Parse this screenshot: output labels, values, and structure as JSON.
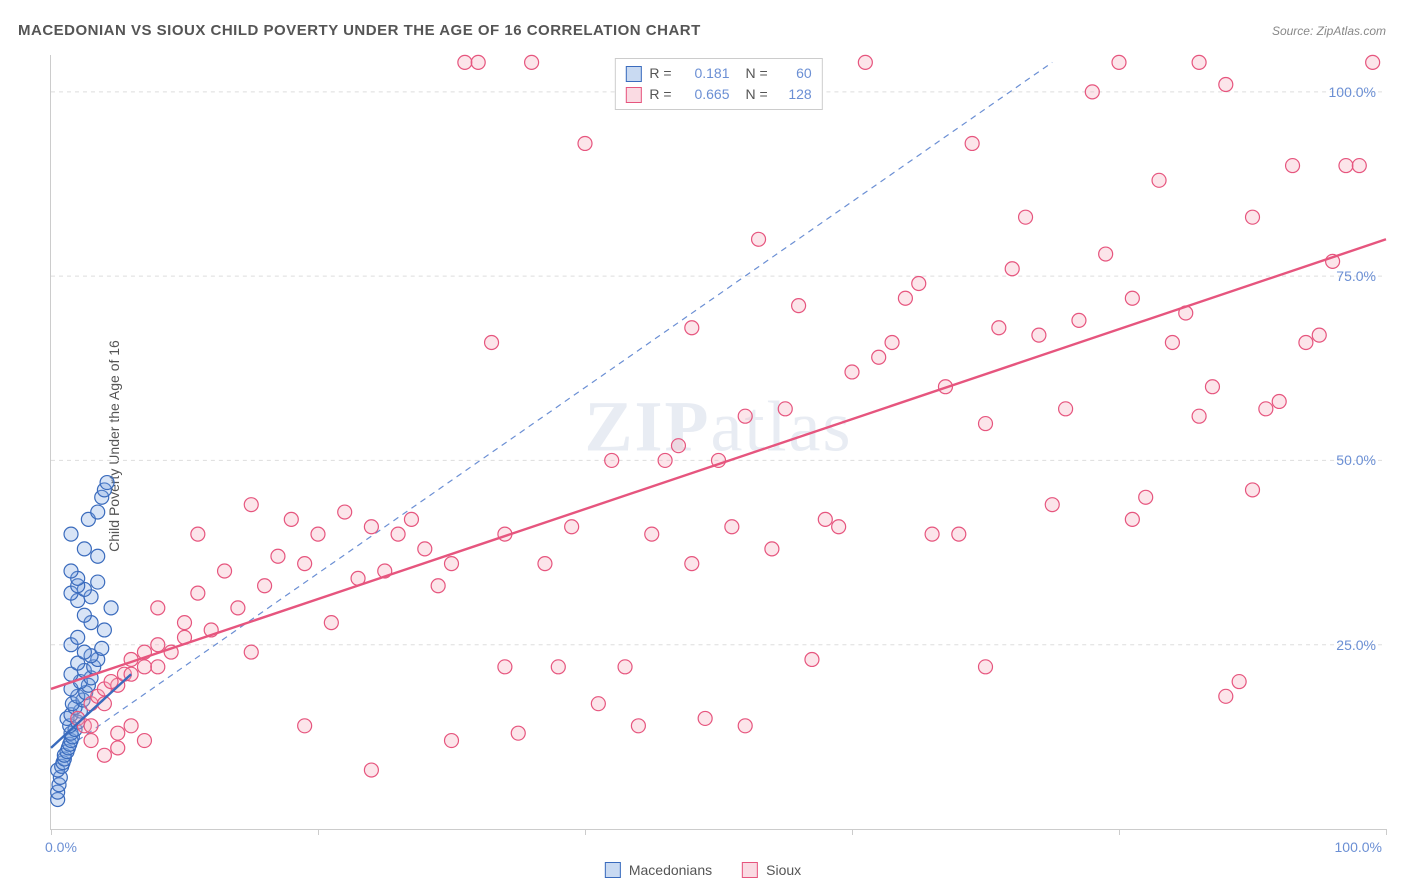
{
  "title": "MACEDONIAN VS SIOUX CHILD POVERTY UNDER THE AGE OF 16 CORRELATION CHART",
  "source": "Source: ZipAtlas.com",
  "y_axis_label": "Child Poverty Under the Age of 16",
  "watermark_bold": "ZIP",
  "watermark_light": "atlas",
  "chart": {
    "type": "scatter",
    "xlim": [
      0,
      100
    ],
    "ylim": [
      0,
      105
    ],
    "x_ticks": [
      0,
      20,
      40,
      60,
      80,
      100
    ],
    "y_gridlines": [
      25,
      50,
      75,
      100
    ],
    "y_tick_labels": [
      "25.0%",
      "50.0%",
      "75.0%",
      "100.0%"
    ],
    "x_origin_label": "0.0%",
    "x_end_label": "100.0%",
    "background_color": "#ffffff",
    "grid_color": "#dddddd",
    "axis_color": "#cccccc",
    "tick_label_color": "#6b8fd4",
    "marker_radius": 7,
    "marker_stroke_width": 1.2,
    "marker_fill_opacity": 0.3,
    "trend_line_width": 2.4,
    "reference_line": {
      "x1": 2,
      "y1": 12,
      "x2": 75,
      "y2": 104,
      "color": "#6b8fd4",
      "dash": "6 5",
      "width": 1.2
    },
    "series": [
      {
        "name": "Macedonians",
        "marker_fill": "#7ea6e0",
        "marker_stroke": "#3a6bbd",
        "trend_color": "#3a6bbd",
        "trend": {
          "x1": 0,
          "y1": 11,
          "x2": 6,
          "y2": 21
        },
        "R": "0.181",
        "N": "60",
        "points": [
          [
            0.5,
            4
          ],
          [
            0.5,
            5
          ],
          [
            0.6,
            6
          ],
          [
            0.7,
            7
          ],
          [
            0.5,
            8
          ],
          [
            0.8,
            8.5
          ],
          [
            0.9,
            9
          ],
          [
            1,
            9.5
          ],
          [
            1,
            10
          ],
          [
            1.2,
            10.5
          ],
          [
            1.3,
            11
          ],
          [
            1.4,
            11.5
          ],
          [
            1.5,
            12
          ],
          [
            1.6,
            12.5
          ],
          [
            1.5,
            13
          ],
          [
            1.8,
            13.5
          ],
          [
            1.4,
            14
          ],
          [
            2,
            14.5
          ],
          [
            1.2,
            15
          ],
          [
            1.5,
            15.5
          ],
          [
            2.2,
            16
          ],
          [
            1.8,
            16.5
          ],
          [
            1.6,
            17
          ],
          [
            2.4,
            17.5
          ],
          [
            2,
            18
          ],
          [
            2.6,
            18.5
          ],
          [
            1.5,
            19
          ],
          [
            2.8,
            19.5
          ],
          [
            2.2,
            20
          ],
          [
            3,
            20.5
          ],
          [
            1.5,
            21
          ],
          [
            2.5,
            21.5
          ],
          [
            3.2,
            22
          ],
          [
            2,
            22.5
          ],
          [
            3.5,
            23
          ],
          [
            3,
            23.5
          ],
          [
            2.5,
            24
          ],
          [
            3.8,
            24.5
          ],
          [
            1.5,
            25
          ],
          [
            2,
            26
          ],
          [
            4,
            27
          ],
          [
            3,
            28
          ],
          [
            2.5,
            29
          ],
          [
            4.5,
            30
          ],
          [
            2,
            31
          ],
          [
            3,
            31.5
          ],
          [
            1.5,
            32
          ],
          [
            2.5,
            32.5
          ],
          [
            2,
            33
          ],
          [
            3.5,
            33.5
          ],
          [
            2,
            34
          ],
          [
            1.5,
            35
          ],
          [
            3.5,
            37
          ],
          [
            2.5,
            38
          ],
          [
            1.5,
            40
          ],
          [
            2.8,
            42
          ],
          [
            3.5,
            43
          ],
          [
            3.8,
            45
          ],
          [
            4,
            46
          ],
          [
            4.2,
            47
          ]
        ]
      },
      {
        "name": "Sioux",
        "marker_fill": "#f5a8bb",
        "marker_stroke": "#e6557e",
        "trend_color": "#e6557e",
        "trend": {
          "x1": 0,
          "y1": 19,
          "x2": 100,
          "y2": 80
        },
        "R": "0.665",
        "N": "128",
        "points": [
          [
            2,
            15
          ],
          [
            3,
            17
          ],
          [
            3.5,
            18
          ],
          [
            4,
            19
          ],
          [
            5,
            19.5
          ],
          [
            4.5,
            20
          ],
          [
            5.5,
            21
          ],
          [
            6,
            21
          ],
          [
            7,
            22
          ],
          [
            8,
            22
          ],
          [
            6,
            23
          ],
          [
            7,
            24
          ],
          [
            9,
            24
          ],
          [
            8,
            25
          ],
          [
            10,
            26
          ],
          [
            5,
            13
          ],
          [
            6,
            14
          ],
          [
            7,
            12
          ],
          [
            5,
            11
          ],
          [
            4,
            10
          ],
          [
            3,
            12
          ],
          [
            2.5,
            14
          ],
          [
            4,
            17
          ],
          [
            3,
            14
          ],
          [
            10,
            28
          ],
          [
            12,
            27
          ],
          [
            11,
            32
          ],
          [
            14,
            30
          ],
          [
            13,
            35
          ],
          [
            15,
            24
          ],
          [
            16,
            33
          ],
          [
            17,
            37
          ],
          [
            18,
            42
          ],
          [
            19,
            36
          ],
          [
            20,
            40
          ],
          [
            22,
            43
          ],
          [
            21,
            28
          ],
          [
            23,
            34
          ],
          [
            25,
            35
          ],
          [
            24,
            41
          ],
          [
            26,
            40
          ],
          [
            28,
            38
          ],
          [
            27,
            42
          ],
          [
            29,
            33
          ],
          [
            30,
            12
          ],
          [
            31,
            104
          ],
          [
            32,
            104
          ],
          [
            33,
            66
          ],
          [
            34,
            40
          ],
          [
            36,
            104
          ],
          [
            35,
            13
          ],
          [
            37,
            36
          ],
          [
            38,
            22
          ],
          [
            39,
            41
          ],
          [
            40,
            93
          ],
          [
            41,
            17
          ],
          [
            42,
            50
          ],
          [
            43,
            22
          ],
          [
            44,
            14
          ],
          [
            45,
            40
          ],
          [
            46,
            50
          ],
          [
            47,
            52
          ],
          [
            48,
            36
          ],
          [
            49,
            15
          ],
          [
            50,
            50
          ],
          [
            51,
            41
          ],
          [
            52,
            14
          ],
          [
            53,
            80
          ],
          [
            54,
            38
          ],
          [
            55,
            57
          ],
          [
            56,
            71
          ],
          [
            57,
            23
          ],
          [
            58,
            42
          ],
          [
            59,
            41
          ],
          [
            60,
            62
          ],
          [
            61,
            104
          ],
          [
            62,
            64
          ],
          [
            63,
            66
          ],
          [
            64,
            72
          ],
          [
            65,
            74
          ],
          [
            66,
            40
          ],
          [
            67,
            60
          ],
          [
            68,
            40
          ],
          [
            69,
            93
          ],
          [
            70,
            22
          ],
          [
            71,
            68
          ],
          [
            72,
            76
          ],
          [
            73,
            83
          ],
          [
            74,
            67
          ],
          [
            75,
            44
          ],
          [
            76,
            57
          ],
          [
            77,
            69
          ],
          [
            78,
            100
          ],
          [
            79,
            78
          ],
          [
            80,
            104
          ],
          [
            81,
            72
          ],
          [
            82,
            45
          ],
          [
            83,
            88
          ],
          [
            84,
            66
          ],
          [
            85,
            70
          ],
          [
            86,
            56
          ],
          [
            87,
            60
          ],
          [
            88,
            18
          ],
          [
            89,
            20
          ],
          [
            90,
            46
          ],
          [
            91,
            57
          ],
          [
            92,
            58
          ],
          [
            93,
            90
          ],
          [
            94,
            66
          ],
          [
            95,
            67
          ],
          [
            96,
            77
          ],
          [
            97,
            90
          ],
          [
            98,
            90
          ],
          [
            99,
            104
          ],
          [
            86,
            104
          ],
          [
            88,
            101
          ],
          [
            90,
            83
          ],
          [
            52,
            56
          ],
          [
            48,
            68
          ],
          [
            24,
            8
          ],
          [
            19,
            14
          ],
          [
            15,
            44
          ],
          [
            11,
            40
          ],
          [
            30,
            36
          ],
          [
            34,
            22
          ],
          [
            8,
            30
          ],
          [
            81,
            42
          ],
          [
            70,
            55
          ]
        ]
      }
    ]
  },
  "stats_box": {
    "rows": [
      {
        "swatch_fill": "#c9daf2",
        "swatch_stroke": "#3a6bbd",
        "R_label": "R =",
        "R": "0.181",
        "N_label": "N =",
        "N": "60"
      },
      {
        "swatch_fill": "#fadbe3",
        "swatch_stroke": "#e6557e",
        "R_label": "R =",
        "R": "0.665",
        "N_label": "N =",
        "N": "128"
      }
    ]
  },
  "legend": {
    "items": [
      {
        "label": "Macedonians",
        "fill": "#c9daf2",
        "stroke": "#3a6bbd"
      },
      {
        "label": "Sioux",
        "fill": "#fadbe3",
        "stroke": "#e6557e"
      }
    ]
  }
}
